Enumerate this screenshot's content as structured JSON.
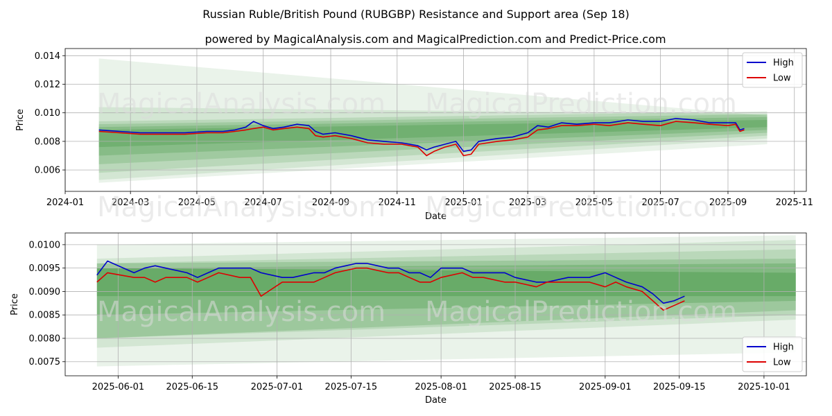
{
  "figure": {
    "title": "Russian Ruble/British Pound (RUBGBP) Resistance and Support area (Sep 18)",
    "subtitle": "powered by MagicalAnalysis.com and MagicalPrediction.com and Predict-Price.com",
    "watermarks": [
      "MagicalAnalysis.com",
      "MagicalPrediction.com"
    ]
  },
  "colors": {
    "high": "#0000cc",
    "low": "#dd0000",
    "band": "#2e8b2e",
    "grid": "#b0b0b0"
  },
  "chart_data": [
    {
      "type": "line",
      "xlabel": "Date",
      "ylabel": "Price",
      "legend": {
        "position": "top-right",
        "entries": [
          "High",
          "Low"
        ]
      },
      "xrange": [
        "2024-01-01",
        "2025-11-12"
      ],
      "ylim": [
        0.0045,
        0.0145
      ],
      "yticks": [
        "0.006",
        "0.008",
        "0.010",
        "0.012",
        "0.014"
      ],
      "ytick_values": [
        0.006,
        0.008,
        0.01,
        0.012,
        0.014
      ],
      "xticks": [
        "2024-01",
        "2024-03",
        "2024-05",
        "2024-07",
        "2024-09",
        "2024-11",
        "2025-01",
        "2025-03",
        "2025-05",
        "2025-07",
        "2025-09",
        "2025-11"
      ],
      "xtick_dates": [
        "2024-01-01",
        "2024-03-01",
        "2024-05-01",
        "2024-07-01",
        "2024-09-01",
        "2024-11-01",
        "2025-01-01",
        "2025-03-01",
        "2025-05-01",
        "2025-07-01",
        "2025-09-01",
        "2025-11-01"
      ],
      "bands": [
        {
          "x": [
            "2024-02-01",
            "2025-10-07"
          ],
          "upper": [
            0.0138,
            0.0098
          ],
          "lower": [
            0.0051,
            0.0078
          ],
          "opacity": 0.1
        },
        {
          "x": [
            "2024-02-01",
            "2025-10-07"
          ],
          "upper": [
            0.0104,
            0.0099
          ],
          "lower": [
            0.0053,
            0.0082
          ],
          "opacity": 0.12
        },
        {
          "x": [
            "2024-02-01",
            "2025-10-07"
          ],
          "upper": [
            0.0094,
            0.0101
          ],
          "lower": [
            0.0058,
            0.0084
          ],
          "opacity": 0.15
        },
        {
          "x": [
            "2024-02-01",
            "2025-10-07"
          ],
          "upper": [
            0.0092,
            0.0099
          ],
          "lower": [
            0.0064,
            0.0086
          ],
          "opacity": 0.18
        },
        {
          "x": [
            "2024-02-01",
            "2025-10-07"
          ],
          "upper": [
            0.009,
            0.0097
          ],
          "lower": [
            0.007,
            0.0088
          ],
          "opacity": 0.22
        },
        {
          "x": [
            "2024-02-01",
            "2025-10-07"
          ],
          "upper": [
            0.0088,
            0.0095
          ],
          "lower": [
            0.0076,
            0.009
          ],
          "opacity": 0.25
        }
      ],
      "series": [
        {
          "name": "High",
          "x": [
            "2024-02-01",
            "2024-02-20",
            "2024-03-10",
            "2024-04-01",
            "2024-04-20",
            "2024-05-10",
            "2024-05-25",
            "2024-06-05",
            "2024-06-15",
            "2024-06-22",
            "2024-07-01",
            "2024-07-10",
            "2024-07-20",
            "2024-08-01",
            "2024-08-12",
            "2024-08-18",
            "2024-08-25",
            "2024-09-05",
            "2024-09-20",
            "2024-10-05",
            "2024-10-20",
            "2024-11-05",
            "2024-11-20",
            "2024-11-28",
            "2024-12-05",
            "2024-12-15",
            "2024-12-25",
            "2025-01-01",
            "2025-01-08",
            "2025-01-15",
            "2025-02-01",
            "2025-02-15",
            "2025-03-01",
            "2025-03-10",
            "2025-03-20",
            "2025-04-01",
            "2025-04-15",
            "2025-05-01",
            "2025-05-15",
            "2025-06-01",
            "2025-06-15",
            "2025-07-01",
            "2025-07-15",
            "2025-08-01",
            "2025-08-15",
            "2025-09-01",
            "2025-09-08",
            "2025-09-12",
            "2025-09-16"
          ],
          "values": [
            0.0088,
            0.0087,
            0.0086,
            0.0086,
            0.0086,
            0.0087,
            0.0087,
            0.0088,
            0.009,
            0.0094,
            0.0091,
            0.0089,
            0.009,
            0.0092,
            0.0091,
            0.0087,
            0.0085,
            0.0086,
            0.0084,
            0.0081,
            0.008,
            0.0079,
            0.0077,
            0.0074,
            0.0076,
            0.0078,
            0.008,
            0.0073,
            0.0074,
            0.008,
            0.0082,
            0.0083,
            0.0086,
            0.0091,
            0.009,
            0.0093,
            0.0092,
            0.0093,
            0.0093,
            0.0095,
            0.0094,
            0.0094,
            0.0096,
            0.0095,
            0.0093,
            0.0093,
            0.0093,
            0.0088,
            0.0089
          ]
        },
        {
          "name": "Low",
          "x": [
            "2024-02-01",
            "2024-02-20",
            "2024-03-10",
            "2024-04-01",
            "2024-04-20",
            "2024-05-10",
            "2024-05-25",
            "2024-06-05",
            "2024-06-15",
            "2024-06-22",
            "2024-07-01",
            "2024-07-10",
            "2024-07-20",
            "2024-08-01",
            "2024-08-12",
            "2024-08-18",
            "2024-08-25",
            "2024-09-05",
            "2024-09-20",
            "2024-10-05",
            "2024-10-20",
            "2024-11-05",
            "2024-11-20",
            "2024-11-28",
            "2024-12-05",
            "2024-12-15",
            "2024-12-25",
            "2025-01-01",
            "2025-01-08",
            "2025-01-15",
            "2025-02-01",
            "2025-02-15",
            "2025-03-01",
            "2025-03-10",
            "2025-03-20",
            "2025-04-01",
            "2025-04-15",
            "2025-05-01",
            "2025-05-15",
            "2025-06-01",
            "2025-06-15",
            "2025-07-01",
            "2025-07-15",
            "2025-08-01",
            "2025-08-15",
            "2025-09-01",
            "2025-09-08",
            "2025-09-12",
            "2025-09-16"
          ],
          "values": [
            0.0087,
            0.0086,
            0.0085,
            0.0085,
            0.0085,
            0.0086,
            0.0086,
            0.0087,
            0.0088,
            0.0089,
            0.009,
            0.0088,
            0.0089,
            0.009,
            0.0089,
            0.0084,
            0.0083,
            0.0084,
            0.0082,
            0.0079,
            0.0078,
            0.0078,
            0.0076,
            0.007,
            0.0073,
            0.0076,
            0.0078,
            0.007,
            0.0071,
            0.0078,
            0.008,
            0.0081,
            0.0083,
            0.0088,
            0.0089,
            0.0091,
            0.0091,
            0.0092,
            0.0091,
            0.0093,
            0.0092,
            0.0091,
            0.0094,
            0.0093,
            0.0092,
            0.0091,
            0.0092,
            0.0087,
            0.0088
          ]
        }
      ]
    },
    {
      "type": "line",
      "xlabel": "Date",
      "ylabel": "Price",
      "legend": {
        "position": "bottom-right",
        "entries": [
          "High",
          "Low"
        ]
      },
      "xrange": [
        "2025-05-22",
        "2025-10-09"
      ],
      "ylim": [
        0.0072,
        0.01025
      ],
      "yticks": [
        "0.0075",
        "0.0080",
        "0.0085",
        "0.0090",
        "0.0095",
        "0.0100"
      ],
      "ytick_values": [
        0.0075,
        0.008,
        0.0085,
        0.009,
        0.0095,
        0.01
      ],
      "xticks": [
        "2025-06-01",
        "2025-06-15",
        "2025-07-01",
        "2025-07-15",
        "2025-08-01",
        "2025-08-15",
        "2025-09-01",
        "2025-09-15",
        "2025-10-01"
      ],
      "xtick_dates": [
        "2025-06-01",
        "2025-06-15",
        "2025-07-01",
        "2025-07-15",
        "2025-08-01",
        "2025-08-15",
        "2025-09-01",
        "2025-09-15",
        "2025-10-01"
      ],
      "bands": [
        {
          "x": [
            "2025-05-28",
            "2025-10-07"
          ],
          "upper": [
            0.01,
            0.0102
          ],
          "lower": [
            0.0074,
            0.0077
          ],
          "opacity": 0.1
        },
        {
          "x": [
            "2025-05-28",
            "2025-10-07"
          ],
          "upper": [
            0.0097,
            0.0101
          ],
          "lower": [
            0.0078,
            0.0084
          ],
          "opacity": 0.12
        },
        {
          "x": [
            "2025-05-28",
            "2025-10-07"
          ],
          "upper": [
            0.0096,
            0.0099
          ],
          "lower": [
            0.008,
            0.0085
          ],
          "opacity": 0.15
        },
        {
          "x": [
            "2025-05-28",
            "2025-10-07"
          ],
          "upper": [
            0.0096,
            0.0097
          ],
          "lower": [
            0.008,
            0.0086
          ],
          "opacity": 0.2
        },
        {
          "x": [
            "2025-05-28",
            "2025-10-07"
          ],
          "upper": [
            0.0095,
            0.0096
          ],
          "lower": [
            0.0085,
            0.0088
          ],
          "opacity": 0.25
        },
        {
          "x": [
            "2025-05-28",
            "2025-10-07"
          ],
          "upper": [
            0.0095,
            0.0094
          ],
          "lower": [
            0.0089,
            0.0089
          ],
          "opacity": 0.3
        }
      ],
      "series": [
        {
          "name": "High",
          "x": [
            "2025-05-28",
            "2025-05-30",
            "2025-06-04",
            "2025-06-06",
            "2025-06-08",
            "2025-06-10",
            "2025-06-14",
            "2025-06-16",
            "2025-06-18",
            "2025-06-20",
            "2025-06-24",
            "2025-06-26",
            "2025-06-28",
            "2025-07-02",
            "2025-07-04",
            "2025-07-08",
            "2025-07-10",
            "2025-07-12",
            "2025-07-16",
            "2025-07-18",
            "2025-07-22",
            "2025-07-24",
            "2025-07-26",
            "2025-07-28",
            "2025-07-30",
            "2025-08-01",
            "2025-08-05",
            "2025-08-07",
            "2025-08-09",
            "2025-08-13",
            "2025-08-15",
            "2025-08-19",
            "2025-08-21",
            "2025-08-25",
            "2025-08-27",
            "2025-08-29",
            "2025-09-01",
            "2025-09-03",
            "2025-09-05",
            "2025-09-08",
            "2025-09-10",
            "2025-09-12",
            "2025-09-14",
            "2025-09-16"
          ],
          "values": [
            0.00935,
            0.00965,
            0.0094,
            0.0095,
            0.00955,
            0.0095,
            0.0094,
            0.0093,
            0.0094,
            0.0095,
            0.0095,
            0.0095,
            0.0094,
            0.0093,
            0.0093,
            0.0094,
            0.0094,
            0.0095,
            0.0096,
            0.0096,
            0.0095,
            0.0095,
            0.0094,
            0.0094,
            0.0093,
            0.0095,
            0.0095,
            0.0094,
            0.0094,
            0.0094,
            0.0093,
            0.0092,
            0.0092,
            0.0093,
            0.0093,
            0.0093,
            0.0094,
            0.0093,
            0.0092,
            0.0091,
            0.00895,
            0.00875,
            0.0088,
            0.0089
          ]
        },
        {
          "name": "Low",
          "x": [
            "2025-05-28",
            "2025-05-30",
            "2025-06-04",
            "2025-06-06",
            "2025-06-08",
            "2025-06-10",
            "2025-06-14",
            "2025-06-16",
            "2025-06-18",
            "2025-06-20",
            "2025-06-24",
            "2025-06-26",
            "2025-06-28",
            "2025-07-02",
            "2025-07-04",
            "2025-07-08",
            "2025-07-10",
            "2025-07-12",
            "2025-07-16",
            "2025-07-18",
            "2025-07-22",
            "2025-07-24",
            "2025-07-26",
            "2025-07-28",
            "2025-07-30",
            "2025-08-01",
            "2025-08-05",
            "2025-08-07",
            "2025-08-09",
            "2025-08-13",
            "2025-08-15",
            "2025-08-19",
            "2025-08-21",
            "2025-08-25",
            "2025-08-27",
            "2025-08-29",
            "2025-09-01",
            "2025-09-03",
            "2025-09-05",
            "2025-09-08",
            "2025-09-10",
            "2025-09-12",
            "2025-09-14",
            "2025-09-16"
          ],
          "values": [
            0.0092,
            0.0094,
            0.0093,
            0.0093,
            0.0092,
            0.0093,
            0.0093,
            0.0092,
            0.0093,
            0.0094,
            0.0093,
            0.0093,
            0.0089,
            0.0092,
            0.0092,
            0.0092,
            0.0093,
            0.0094,
            0.0095,
            0.0095,
            0.0094,
            0.0094,
            0.0093,
            0.0092,
            0.0092,
            0.0093,
            0.0094,
            0.0093,
            0.0093,
            0.0092,
            0.0092,
            0.0091,
            0.0092,
            0.0092,
            0.0092,
            0.0092,
            0.0091,
            0.0092,
            0.0091,
            0.009,
            0.0088,
            0.0086,
            0.0087,
            0.0088
          ]
        }
      ]
    }
  ]
}
